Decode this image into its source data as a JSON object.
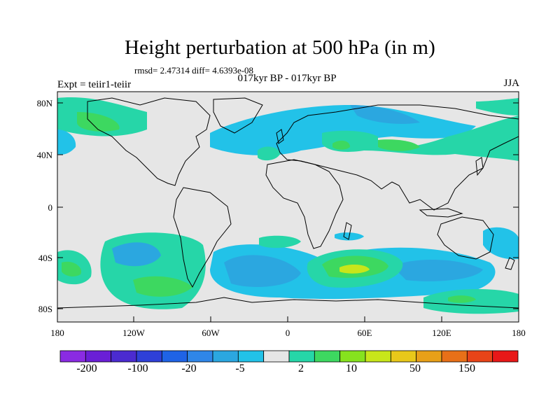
{
  "title": "Height perturbation at 500 hPa (in m)",
  "stats": "rmsd= 2.47314 diff= 4.6393e-08",
  "subtitle": "017kyr BP - 017kyr BP",
  "experiment": "Expt = teiir1-teiir",
  "season": "JJA",
  "axes": {
    "lat_ticks": [
      "80N",
      "40N",
      "0",
      "40S",
      "80S"
    ],
    "lon_ticks": [
      "180",
      "120W",
      "60W",
      "0",
      "60E",
      "120E",
      "180"
    ]
  },
  "colorbar": {
    "colors": [
      "#8a2be2",
      "#6a1fd6",
      "#4b2bd0",
      "#2e40d8",
      "#1f63e6",
      "#2f86e8",
      "#2ba7e0",
      "#22c2e8",
      "#e6e6e6",
      "#26d6a8",
      "#3dd860",
      "#86e21e",
      "#c8e61a",
      "#e8c81a",
      "#e8a018",
      "#e87018",
      "#e84418",
      "#e81818"
    ],
    "labels": [
      "-200",
      "-100",
      "-20",
      "-5",
      "2",
      "10",
      "50",
      "150"
    ]
  },
  "legend_colors": {
    "land_ocean_background": "#e6e6e6",
    "positive_small": "#26d6a8",
    "positive_mid": "#3dd860",
    "positive_strong": "#c8e61a",
    "negative_small": "#22c2e8",
    "negative_mid": "#2ba7e0"
  }
}
